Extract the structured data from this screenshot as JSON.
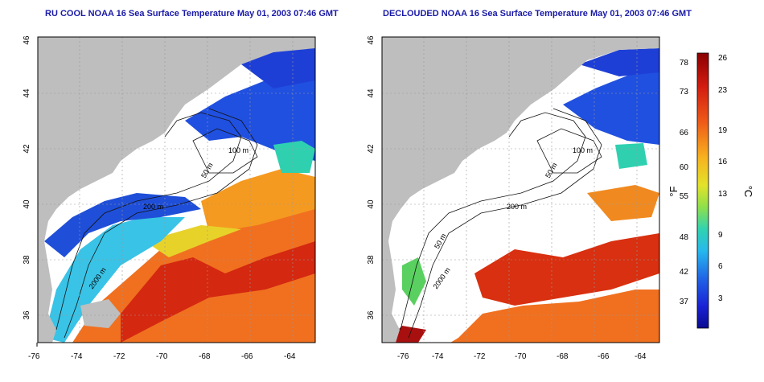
{
  "maps": [
    {
      "title": "RU COOL NOAA 16 Sea Surface Temperature May 01, 2003 07:46 GMT",
      "x_ticks": [
        "-76",
        "-74",
        "-72",
        "-70",
        "-68",
        "-66",
        "-64"
      ],
      "y_ticks": [
        "46",
        "44",
        "42",
        "40",
        "38",
        "36"
      ],
      "contour_labels": [
        "100 m",
        "50 m",
        "200 m",
        "2000 m"
      ]
    },
    {
      "title": "DECLOUDED NOAA 16 Sea Surface Temperature May 01, 2003 07:46 GMT",
      "x_ticks": [
        "-76",
        "-74",
        "-72",
        "-70",
        "-68",
        "-66",
        "-64"
      ],
      "y_ticks": [
        "46",
        "44",
        "42",
        "40",
        "38",
        "36"
      ],
      "contour_labels": [
        "100 m",
        "50 m",
        "200 m",
        "50 m",
        "2000 m"
      ]
    }
  ],
  "colorbar": {
    "fahrenheit_ticks": [
      "78",
      "73",
      "66",
      "60",
      "55",
      "48",
      "42",
      "37"
    ],
    "celsius_ticks": [
      "26",
      "23",
      "19",
      "16",
      "13",
      "9",
      "6",
      "3"
    ],
    "fahrenheit_unit": "°F",
    "celsius_unit": "°C"
  },
  "colors": {
    "title": "#1a1aa8",
    "land": "#bebebe",
    "cloud": "#ffffff"
  }
}
